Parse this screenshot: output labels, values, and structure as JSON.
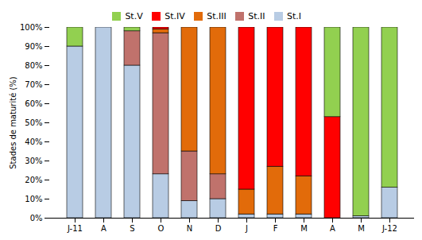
{
  "chart_data": {
    "type": "bar",
    "stacked": true,
    "categories": [
      "J-11",
      "A",
      "S",
      "O",
      "N",
      "D",
      "J",
      "F",
      "M",
      "A",
      "M",
      "J-12"
    ],
    "series": [
      {
        "name": "St.I",
        "color": "#b8cce4",
        "values": [
          90,
          100,
          80,
          23,
          9,
          10,
          2,
          2,
          2,
          0,
          1,
          16
        ]
      },
      {
        "name": "St.II",
        "color": "#c0726c",
        "values": [
          0,
          0,
          18,
          74,
          26,
          13,
          0,
          0,
          0,
          0,
          0,
          0
        ]
      },
      {
        "name": "St.III",
        "color": "#e26b0a",
        "values": [
          0,
          0,
          0,
          2,
          65,
          77,
          13,
          25,
          20,
          0,
          0,
          0
        ]
      },
      {
        "name": "St.IV",
        "color": "#ff0000",
        "values": [
          0,
          0,
          0,
          1,
          0,
          0,
          85,
          73,
          78,
          53,
          0,
          0
        ]
      },
      {
        "name": "St.V",
        "color": "#92d050",
        "values": [
          10,
          0,
          2,
          0,
          0,
          0,
          0,
          0,
          0,
          47,
          99,
          84
        ]
      }
    ],
    "ylabel": "Stades de maturité (%)",
    "ylim": [
      0,
      100
    ],
    "yticks": [
      {
        "value": 0,
        "label": "0%"
      },
      {
        "value": 10,
        "label": "10%"
      },
      {
        "value": 20,
        "label": "20%"
      },
      {
        "value": 30,
        "label": "30%"
      },
      {
        "value": 40,
        "label": "40%"
      },
      {
        "value": 50,
        "label": "50%"
      },
      {
        "value": 60,
        "label": "60%"
      },
      {
        "value": 70,
        "label": "70%"
      },
      {
        "value": 80,
        "label": "80%"
      },
      {
        "value": 90,
        "label": "90%"
      },
      {
        "value": 100,
        "label": "100%"
      }
    ],
    "legend": "top",
    "grid": false
  }
}
